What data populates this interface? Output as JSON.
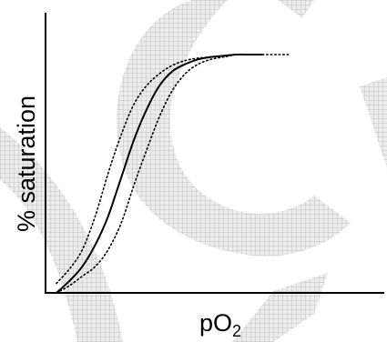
{
  "chart_data": {
    "type": "line",
    "title": "",
    "xlabel": "pO",
    "xlabel_subscript": "2",
    "ylabel": "% saturation",
    "xlim": [
      0,
      1
    ],
    "ylim": [
      0,
      1
    ],
    "grid": false,
    "legend": "none",
    "series": [
      {
        "style": "solid",
        "x": [
          0.0,
          0.05,
          0.1,
          0.15,
          0.2,
          0.25,
          0.3,
          0.35,
          0.4,
          0.45,
          0.5,
          0.55,
          0.6,
          0.65,
          0.7,
          0.75,
          0.8
        ],
        "y": [
          0.0,
          0.05,
          0.11,
          0.2,
          0.32,
          0.48,
          0.64,
          0.77,
          0.87,
          0.93,
          0.96,
          0.98,
          0.99,
          0.995,
          1.0,
          1.0,
          1.0
        ]
      },
      {
        "style": "dotted",
        "x": [
          0.0,
          0.05,
          0.1,
          0.15,
          0.2,
          0.25,
          0.3,
          0.35,
          0.4,
          0.45,
          0.5,
          0.55,
          0.6,
          0.65,
          0.7,
          0.75,
          0.8,
          0.85,
          0.9
        ],
        "y": [
          0.04,
          0.1,
          0.18,
          0.32,
          0.5,
          0.66,
          0.79,
          0.87,
          0.92,
          0.955,
          0.975,
          0.985,
          0.99,
          0.995,
          1.0,
          1.0,
          1.0,
          1.0,
          1.0
        ]
      },
      {
        "style": "dotted",
        "x": [
          0.0,
          0.05,
          0.1,
          0.15,
          0.2,
          0.25,
          0.3,
          0.35,
          0.4,
          0.45,
          0.5,
          0.55,
          0.6,
          0.65,
          0.7,
          0.75,
          0.8
        ],
        "y": [
          0.0,
          0.03,
          0.07,
          0.11,
          0.18,
          0.29,
          0.45,
          0.6,
          0.74,
          0.85,
          0.92,
          0.96,
          0.98,
          0.99,
          1.0,
          1.0,
          1.0
        ]
      }
    ]
  },
  "colors": {
    "curve": "#000000",
    "watermark": "#c8c8c8"
  }
}
